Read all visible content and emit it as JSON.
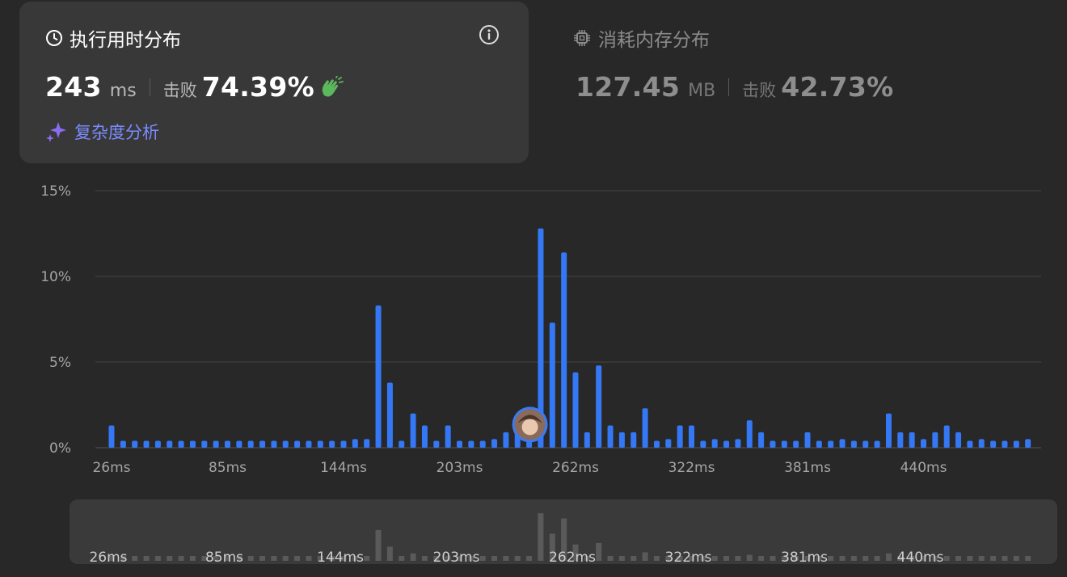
{
  "runtime": {
    "title": "执行用时分布",
    "value": "243",
    "unit": "ms",
    "beat_label": "击败",
    "beat_value": "74.39%",
    "complexity_label": "复杂度分析"
  },
  "memory": {
    "title": "消耗内存分布",
    "value": "127.45",
    "unit": "MB",
    "beat_label": "击败",
    "beat_value": "42.73%"
  },
  "colors": {
    "bar": "#3478f6",
    "mini_bar": "#5a5a5a",
    "accent_purple": "#7b8cff",
    "clap_green": "#5cb85c"
  },
  "chart_data": {
    "type": "bar",
    "xlabel": "",
    "ylabel": "",
    "ylim": [
      0,
      15
    ],
    "yticks": [
      "0%",
      "5%",
      "10%",
      "15%"
    ],
    "grid": true,
    "xtick_labels": [
      "26ms",
      "85ms",
      "144ms",
      "203ms",
      "262ms",
      "322ms",
      "381ms",
      "440ms"
    ],
    "xtick_bar_index": [
      0,
      10,
      20,
      30,
      40,
      50,
      60,
      70
    ],
    "marker_bar_index": 36,
    "values": [
      1.3,
      0.4,
      0.4,
      0.4,
      0.4,
      0.4,
      0.4,
      0.4,
      0.4,
      0.4,
      0.4,
      0.4,
      0.4,
      0.4,
      0.4,
      0.4,
      0.4,
      0.4,
      0.4,
      0.4,
      0.4,
      0.5,
      0.5,
      8.3,
      3.8,
      0.4,
      2.0,
      1.3,
      0.4,
      1.3,
      0.4,
      0.4,
      0.4,
      0.5,
      0.9,
      1.3,
      0.5,
      12.8,
      7.3,
      11.4,
      4.4,
      0.9,
      4.8,
      1.3,
      0.9,
      0.9,
      2.3,
      0.4,
      0.5,
      1.3,
      1.3,
      0.4,
      0.5,
      0.4,
      0.5,
      1.6,
      0.9,
      0.4,
      0.4,
      0.4,
      0.9,
      0.4,
      0.4,
      0.5,
      0.4,
      0.4,
      0.4,
      2.0,
      0.9,
      0.9,
      0.5,
      0.9,
      1.3,
      0.9,
      0.4,
      0.5,
      0.4,
      0.4,
      0.4,
      0.5
    ]
  }
}
